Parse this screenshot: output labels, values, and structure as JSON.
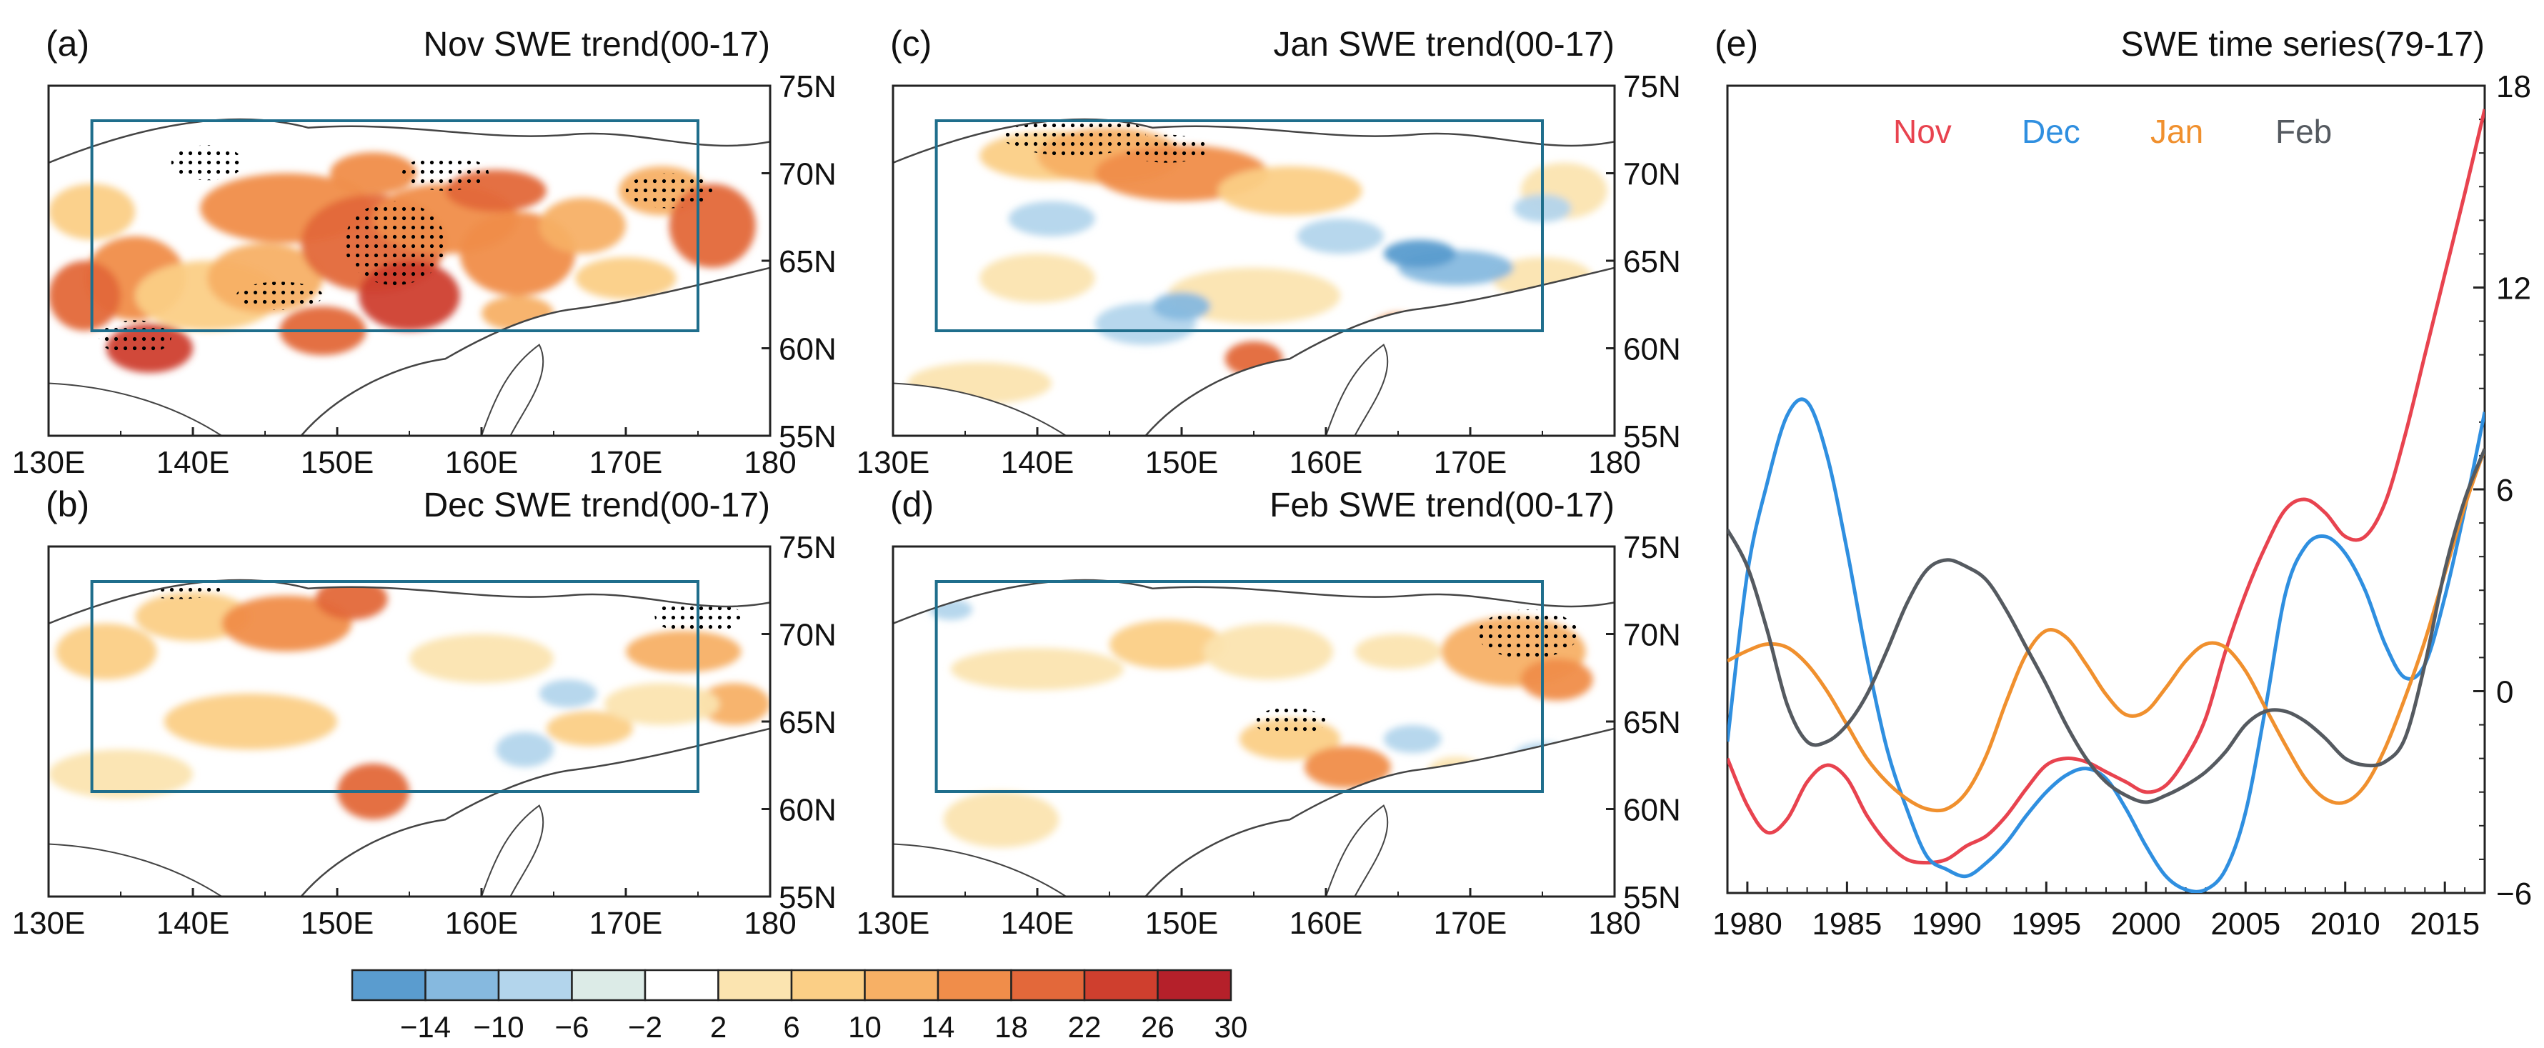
{
  "maps": [
    {
      "id": "a",
      "tag": "(a)",
      "title": "Nov SWE trend(00-17)",
      "show_x": true
    },
    {
      "id": "c",
      "tag": "(c)",
      "title": "Jan SWE trend(00-17)",
      "show_x": true
    },
    {
      "id": "b",
      "tag": "(b)",
      "title": "Dec SWE trend(00-17)",
      "show_x": true
    },
    {
      "id": "d",
      "tag": "(d)",
      "title": "Feb SWE trend(00-17)",
      "show_x": true
    }
  ],
  "map_axes": {
    "lon_ticks": [
      "130E",
      "140E",
      "150E",
      "160E",
      "170E",
      "180"
    ],
    "lat_ticks": [
      "75N",
      "70N",
      "65N",
      "60N",
      "55N"
    ],
    "lon_range": [
      130,
      180
    ],
    "lat_range": [
      55,
      75
    ],
    "box": {
      "lon": [
        133,
        175
      ],
      "lat": [
        61,
        73
      ]
    }
  },
  "colorbar": {
    "labels": [
      "-14",
      "-10",
      "-6",
      "-2",
      "2",
      "6",
      "10",
      "14",
      "18",
      "22",
      "26",
      "30"
    ],
    "colors": [
      "#5a9ccf",
      "#86b9df",
      "#b3d5ec",
      "#dcebe7",
      "#ffffff",
      "#fbe4b0",
      "#fbcf86",
      "#f7b065",
      "#f08d4a",
      "#e3683a",
      "#cf3f2e",
      "#b5202a"
    ]
  },
  "chart_data": {
    "type": "line",
    "tag": "(e)",
    "title": "SWE time series(79-17)",
    "xlabel": "",
    "ylabel": "",
    "x_ticks": [
      "1980",
      "1985",
      "1990",
      "1995",
      "2000",
      "2005",
      "2010",
      "2015"
    ],
    "y_ticks": [
      "-6",
      "0",
      "6",
      "12",
      "18"
    ],
    "xlim": [
      1979,
      2017
    ],
    "ylim": [
      -6,
      18
    ],
    "x": [
      1979,
      1980,
      1981,
      1982,
      1983,
      1984,
      1985,
      1986,
      1987,
      1988,
      1989,
      1990,
      1991,
      1992,
      1993,
      1994,
      1995,
      1996,
      1997,
      1998,
      1999,
      2000,
      2001,
      2002,
      2003,
      2004,
      2005,
      2006,
      2007,
      2008,
      2009,
      2010,
      2011,
      2012,
      2013,
      2014,
      2015,
      2016,
      2017
    ],
    "series": [
      {
        "name": "Nov",
        "color": "#e8434f",
        "values": [
          -2.0,
          -3.4,
          -4.2,
          -3.8,
          -2.7,
          -2.2,
          -2.6,
          -3.7,
          -4.5,
          -5.0,
          -5.1,
          -5.0,
          -4.6,
          -4.3,
          -3.7,
          -2.9,
          -2.2,
          -2.0,
          -2.1,
          -2.4,
          -2.7,
          -3.0,
          -2.8,
          -2.0,
          -0.8,
          1.2,
          2.9,
          4.3,
          5.4,
          5.7,
          5.3,
          4.6,
          4.6,
          5.6,
          7.6,
          10.0,
          12.4,
          14.8,
          17.3
        ]
      },
      {
        "name": "Dec",
        "color": "#2f8fe0",
        "values": [
          -1.5,
          3.5,
          6.2,
          8.2,
          8.6,
          7.0,
          4.2,
          1.0,
          -1.7,
          -3.5,
          -4.9,
          -5.3,
          -5.5,
          -5.1,
          -4.5,
          -3.7,
          -3.0,
          -2.5,
          -2.3,
          -2.6,
          -3.5,
          -4.6,
          -5.5,
          -5.9,
          -5.9,
          -5.3,
          -3.6,
          -0.5,
          2.9,
          4.3,
          4.6,
          4.1,
          3.0,
          1.4,
          0.4,
          0.8,
          2.8,
          5.4,
          8.3
        ]
      },
      {
        "name": "Jan",
        "color": "#f0902e",
        "values": [
          0.9,
          1.2,
          1.4,
          1.3,
          0.8,
          0.0,
          -1.0,
          -2.0,
          -2.7,
          -3.2,
          -3.5,
          -3.5,
          -3.0,
          -1.9,
          -0.3,
          1.1,
          1.8,
          1.6,
          0.8,
          -0.1,
          -0.7,
          -0.6,
          0.1,
          0.9,
          1.4,
          1.3,
          0.6,
          -0.5,
          -1.6,
          -2.6,
          -3.2,
          -3.3,
          -2.8,
          -1.7,
          -0.2,
          1.5,
          3.5,
          5.5,
          7.2
        ]
      },
      {
        "name": "Feb",
        "color": "#555a60",
        "values": [
          4.8,
          3.7,
          1.8,
          -0.4,
          -1.5,
          -1.5,
          -1.0,
          -0.1,
          1.2,
          2.6,
          3.6,
          3.9,
          3.7,
          3.3,
          2.4,
          1.3,
          0.2,
          -1.0,
          -2.0,
          -2.7,
          -3.1,
          -3.3,
          -3.1,
          -2.8,
          -2.4,
          -1.8,
          -1.0,
          -0.6,
          -0.6,
          -0.9,
          -1.4,
          -2.0,
          -2.2,
          -2.1,
          -1.4,
          0.8,
          3.6,
          5.7,
          7.2
        ]
      }
    ]
  }
}
